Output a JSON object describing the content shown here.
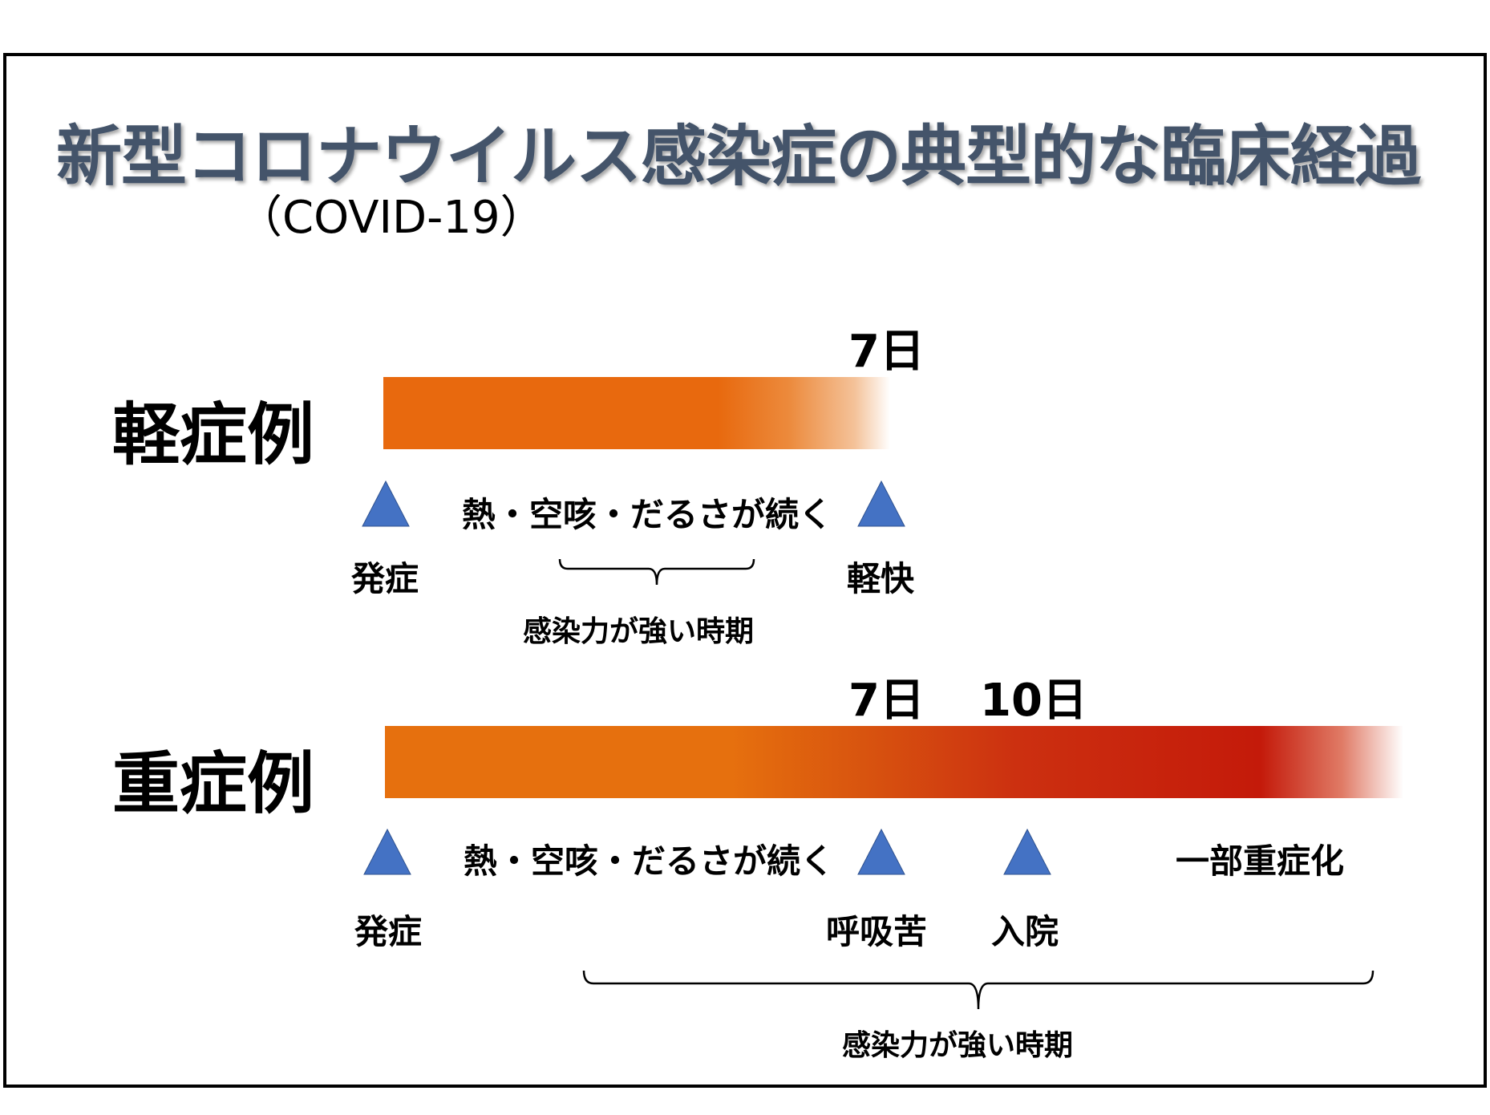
{
  "title": "新型コロナウイルス感染症の典型的な臨床経過",
  "subtitle": "（COVID-19）",
  "colors": {
    "title": "#44546a",
    "bar_orange": "#e8690e",
    "bar_red": "#c41a0a",
    "marker": "#4472c4"
  },
  "mild": {
    "label": "軽症例",
    "day": "7日",
    "symptoms": "熱・空咳・だるさが続く",
    "onset": "発症",
    "end": "軽快",
    "period": "感染力が強い時期"
  },
  "severe": {
    "label": "重症例",
    "day7": "7日",
    "day10": "10日",
    "symptoms": "熱・空咳・だるさが続く",
    "onset": "発症",
    "dyspnea": "呼吸苦",
    "admission": "入院",
    "worsening": "一部重症化",
    "period": "感染力が強い時期"
  }
}
